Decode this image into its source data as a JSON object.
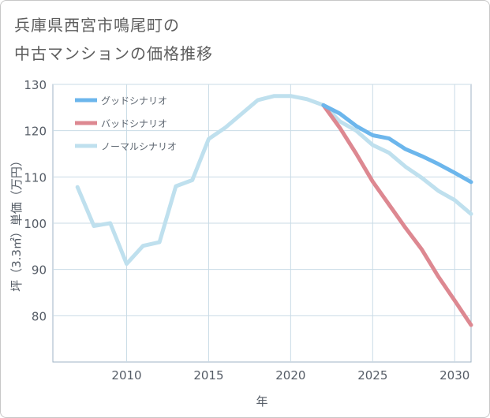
{
  "title": "兵庫県西宮市鳴尾町の\n中古マンションの価格推移",
  "chart_data": {
    "type": "line",
    "xlabel": "年",
    "ylabel": "坪（3.3㎡）単価（万円）",
    "xlim": [
      2005.5,
      2031
    ],
    "ylim": [
      70,
      130
    ],
    "xticks": [
      2010,
      2015,
      2020,
      2025,
      2030
    ],
    "yticks": [
      80,
      90,
      100,
      110,
      120,
      130
    ],
    "legend_position": "top-left",
    "series": [
      {
        "name": "グッドシナリオ",
        "color": "#6cb6ec",
        "x": [
          2022,
          2023,
          2024,
          2025,
          2026,
          2027,
          2028,
          2029,
          2030,
          2031
        ],
        "y": [
          125.5,
          123.7,
          121.0,
          119.0,
          118.3,
          116.0,
          114.5,
          112.8,
          110.9,
          108.9
        ]
      },
      {
        "name": "バッドシナリオ",
        "color": "#dd8891",
        "x": [
          2022,
          2023,
          2024,
          2025,
          2026,
          2027,
          2028,
          2029,
          2030,
          2031
        ],
        "y": [
          125.5,
          120.6,
          115.0,
          109.0,
          104.0,
          99.0,
          94.3,
          88.5,
          83.3,
          78.0
        ]
      },
      {
        "name": "ノーマルシナリオ",
        "color": "#bfe0ee",
        "x": [
          2007,
          2008,
          2009,
          2010,
          2011,
          2012,
          2013,
          2014,
          2015,
          2016,
          2017,
          2018,
          2019,
          2020,
          2021,
          2022,
          2023,
          2024,
          2025,
          2026,
          2027,
          2028,
          2029,
          2030,
          2031
        ],
        "y": [
          107.8,
          99.4,
          100.0,
          91.2,
          95.1,
          95.9,
          108.0,
          109.3,
          118.2,
          120.6,
          123.6,
          126.6,
          127.5,
          127.5,
          126.8,
          125.5,
          122.0,
          120.0,
          116.9,
          115.2,
          112.2,
          109.8,
          107.0,
          105.0,
          102.0
        ]
      }
    ]
  }
}
